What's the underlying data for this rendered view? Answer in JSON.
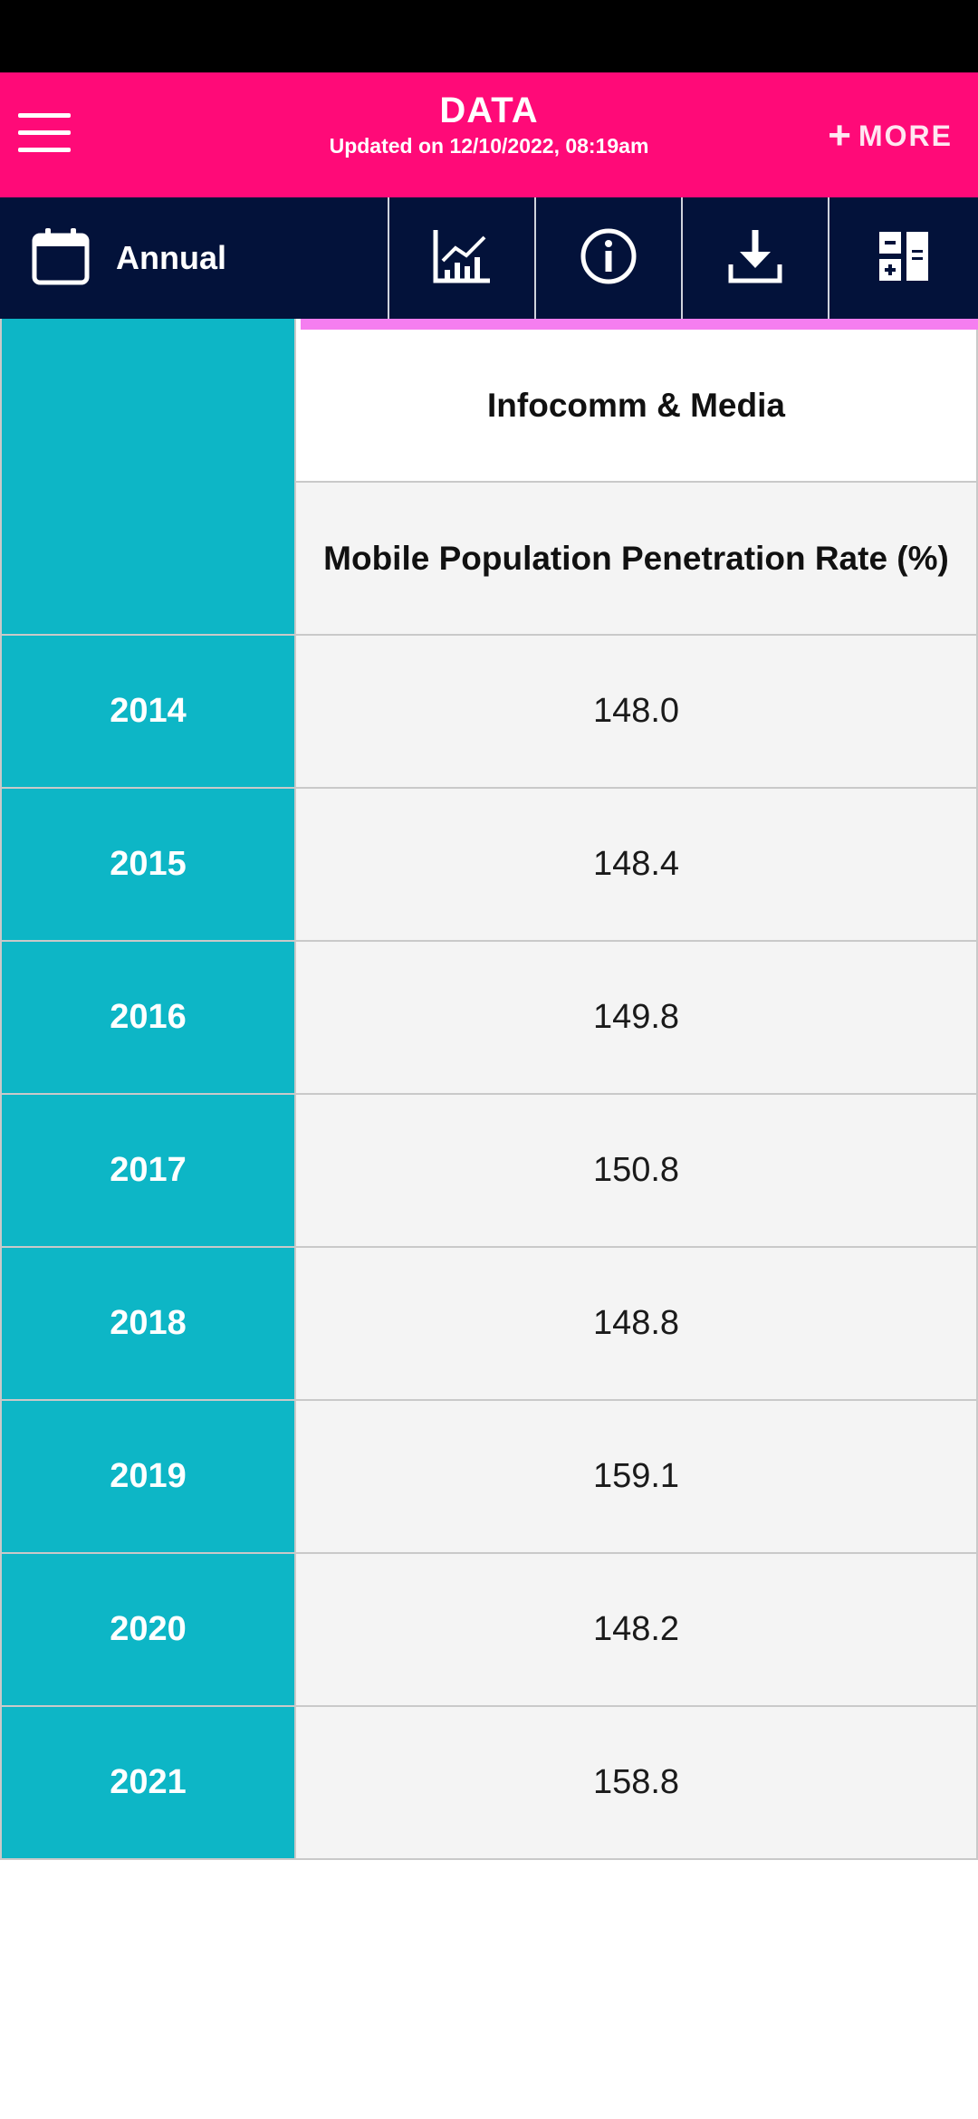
{
  "header": {
    "title": "DATA",
    "subtitle": "Updated on 12/10/2022, 08:19am",
    "more_label": "MORE",
    "menu_icon": "hamburger-menu-icon",
    "colors": {
      "header_bg": "#ff0a78",
      "toolbar_bg": "#03123a",
      "year_bg": "#0db6c6",
      "accent": "#f57ef0"
    }
  },
  "toolbar": {
    "frequency_label": "Annual",
    "icons": [
      "calendar-icon",
      "chart-icon",
      "info-icon",
      "download-icon",
      "calculator-icon"
    ]
  },
  "table": {
    "category": "Infocomm & Media",
    "indicator": "Mobile Population Penetration Rate (%)",
    "rows": [
      {
        "year": "2014",
        "value": "148.0"
      },
      {
        "year": "2015",
        "value": "148.4"
      },
      {
        "year": "2016",
        "value": "149.8"
      },
      {
        "year": "2017",
        "value": "150.8"
      },
      {
        "year": "2018",
        "value": "148.8"
      },
      {
        "year": "2019",
        "value": "159.1"
      },
      {
        "year": "2020",
        "value": "148.2"
      },
      {
        "year": "2021",
        "value": "158.8"
      }
    ]
  }
}
